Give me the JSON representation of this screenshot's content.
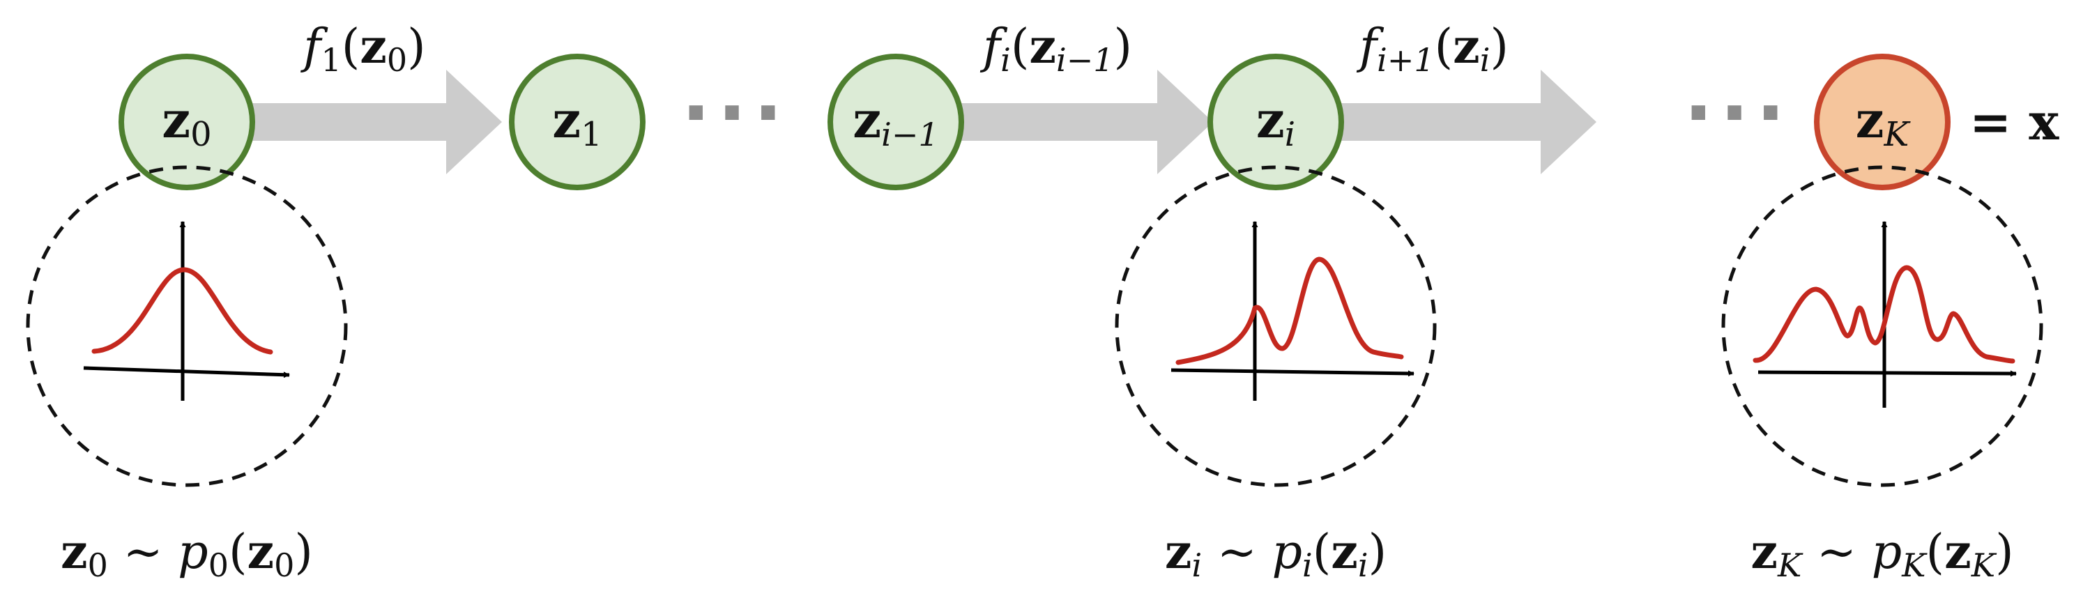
{
  "colors": {
    "latent_fill": "#dcebd6",
    "latent_stroke": "#4e7f2f",
    "output_fill": "#f5c59c",
    "output_stroke": "#c8452c",
    "arrow": "#cccccc",
    "curve": "#c4281e",
    "ellipsis": "#8c8c8c",
    "dashed": "#111111"
  },
  "nodes": [
    {
      "var": "z",
      "sub": "0",
      "kind": "latent"
    },
    {
      "var": "z",
      "sub": "1",
      "kind": "latent"
    },
    {
      "var": "z",
      "sub": "i−1",
      "kind": "latent"
    },
    {
      "var": "z",
      "sub": "i",
      "kind": "latent"
    },
    {
      "var": "z",
      "sub": "K",
      "kind": "output",
      "suffix": "= x"
    }
  ],
  "ellipsis": [
    "···",
    "···"
  ],
  "transforms": [
    {
      "f": "f",
      "sub": "1",
      "arg_var": "z",
      "arg_sub": "0"
    },
    {
      "f": "f",
      "sub": "i",
      "arg_var": "z",
      "arg_sub": "i−1"
    },
    {
      "f": "f",
      "sub": "i+1",
      "arg_var": "z",
      "arg_sub": "i"
    }
  ],
  "densities": [
    {
      "shape": "unimodal gaussian",
      "var": "z",
      "sub": "0",
      "p": "p",
      "psub": "0"
    },
    {
      "shape": "bimodal",
      "var": "z",
      "sub": "i",
      "p": "p",
      "psub": "i"
    },
    {
      "shape": "multimodal",
      "var": "z",
      "sub": "K",
      "p": "p",
      "psub": "K"
    }
  ]
}
